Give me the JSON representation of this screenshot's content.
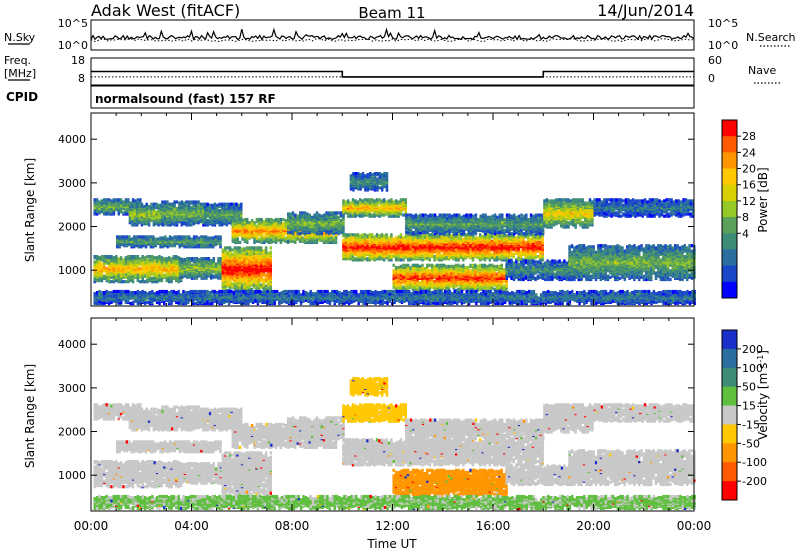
{
  "header": {
    "station": "Adak West (fitACF)",
    "beam": "Beam 11",
    "date": "14/Jun/2014"
  },
  "side_labels": {
    "nsky": "N.Sky",
    "nsearch": "N.Search",
    "freq_line1": "Freq.",
    "freq_line2": "[MHz]",
    "nave": "Nave",
    "cpid": "CPID",
    "cpid_value": "normalsound (fast) 157 RF"
  },
  "chart_data": [
    {
      "type": "line",
      "name": "noise",
      "yticks": [
        "10^5",
        "10^0"
      ],
      "yticks_right": [
        "10^5",
        "10^0"
      ],
      "xlim": [
        0,
        24
      ],
      "baseline_level": 0.35
    },
    {
      "type": "line",
      "name": "frequency",
      "yticks_left": [
        "18",
        "8"
      ],
      "yticks_right": [
        "60",
        "0"
      ],
      "ylim_left": [
        8,
        18
      ],
      "xlim": [
        0,
        24
      ],
      "freq_segments": [
        {
          "x0": 0,
          "x1": 10,
          "y": 13
        },
        {
          "x0": 10,
          "x1": 18,
          "y": 11
        },
        {
          "x0": 18,
          "x1": 24,
          "y": 13
        }
      ],
      "nave_level": 0.3
    },
    {
      "type": "heatmap",
      "name": "power",
      "ylabel": "Slant Range [km]",
      "yticks": [
        1000,
        2000,
        3000,
        4000
      ],
      "ylim": [
        180,
        4600
      ],
      "xlim": [
        0,
        24
      ],
      "colorbar": {
        "label": "Power [dB]",
        "ticks": [
          "28",
          "24",
          "20",
          "16",
          "12",
          "8",
          "4"
        ],
        "colors": [
          "#ff0000",
          "#ff5a00",
          "#ff9600",
          "#ffc800",
          "#d8d000",
          "#96c828",
          "#5aa05a",
          "#3c8c78",
          "#2a6ea0",
          "#1a46c8",
          "#0000ff"
        ]
      }
    },
    {
      "type": "heatmap",
      "name": "velocity",
      "ylabel": "Slant Range [km]",
      "xlabel": "Time UT",
      "yticks": [
        1000,
        2000,
        3000,
        4000
      ],
      "ylim": [
        180,
        4600
      ],
      "xlim": [
        0,
        24
      ],
      "xticks": [
        "00:00",
        "04:00",
        "08:00",
        "12:00",
        "16:00",
        "20:00",
        "00:00"
      ],
      "colorbar": {
        "label": "Velocity [m s^-1]",
        "ticks": [
          "200",
          "100",
          "50",
          "15",
          "-15",
          "-50",
          "-100",
          "-200"
        ],
        "colors": [
          "#1a2ec8",
          "#2a6ea0",
          "#3c8c78",
          "#5fbf3f",
          "#c8c8c8",
          "#ffc800",
          "#ff9600",
          "#ff5a00",
          "#ff0000"
        ]
      }
    }
  ],
  "echo_bands": [
    {
      "t0": 0.1,
      "t1": 3.6,
      "r0": 700,
      "r1": 1300,
      "pmax": 22,
      "vel": 0
    },
    {
      "t0": 3.5,
      "t1": 5.5,
      "r0": 780,
      "r1": 1250,
      "pmax": 16,
      "vel": 0
    },
    {
      "t0": 5.2,
      "t1": 7.2,
      "r0": 500,
      "r1": 1500,
      "pmax": 30,
      "vel": 0
    },
    {
      "t0": 0.1,
      "t1": 2.0,
      "r0": 2250,
      "r1": 2600,
      "pmax": 14,
      "vel": 0
    },
    {
      "t0": 1.5,
      "t1": 3.2,
      "r0": 2000,
      "r1": 2500,
      "pmax": 16,
      "vel": 0
    },
    {
      "t0": 2.8,
      "t1": 4.6,
      "r0": 2000,
      "r1": 2550,
      "pmax": 14,
      "vel": 0
    },
    {
      "t0": 1.0,
      "t1": 5.2,
      "r0": 1500,
      "r1": 1750,
      "pmax": 12,
      "vel": 0
    },
    {
      "t0": 4.5,
      "t1": 6.0,
      "r0": 2000,
      "r1": 2500,
      "pmax": 12,
      "vel": 0
    },
    {
      "t0": 5.6,
      "t1": 9.8,
      "r0": 1600,
      "r1": 2150,
      "pmax": 24,
      "vel": 0
    },
    {
      "t0": 7.8,
      "t1": 10.0,
      "r0": 1800,
      "r1": 2300,
      "pmax": 14,
      "vel": 0
    },
    {
      "t0": 10.0,
      "t1": 18.0,
      "r0": 1200,
      "r1": 1800,
      "pmax": 30,
      "vel": 0
    },
    {
      "t0": 10.0,
      "t1": 12.5,
      "r0": 2200,
      "r1": 2600,
      "pmax": 22,
      "vel": -40
    },
    {
      "t0": 12.5,
      "t1": 18.0,
      "r0": 1800,
      "r1": 2250,
      "pmax": 12,
      "vel": 0
    },
    {
      "t0": 10.3,
      "t1": 11.8,
      "r0": 2800,
      "r1": 3200,
      "pmax": 10,
      "vel": -30
    },
    {
      "t0": 12.0,
      "t1": 16.5,
      "r0": 500,
      "r1": 1100,
      "pmax": 28,
      "vel": -60
    },
    {
      "t0": 16.5,
      "t1": 19.5,
      "r0": 750,
      "r1": 1200,
      "pmax": 10,
      "vel": 0
    },
    {
      "t0": 18.0,
      "t1": 20.0,
      "r0": 1950,
      "r1": 2600,
      "pmax": 20,
      "vel": 0
    },
    {
      "t0": 19.0,
      "t1": 24.0,
      "r0": 750,
      "r1": 1550,
      "pmax": 14,
      "vel": 0
    },
    {
      "t0": 20.0,
      "t1": 24.0,
      "r0": 2200,
      "r1": 2600,
      "pmax": 8,
      "vel": 0
    },
    {
      "t0": 0.1,
      "t1": 24.0,
      "r0": 200,
      "r1": 500,
      "pmax": 8,
      "vel": 20
    }
  ]
}
